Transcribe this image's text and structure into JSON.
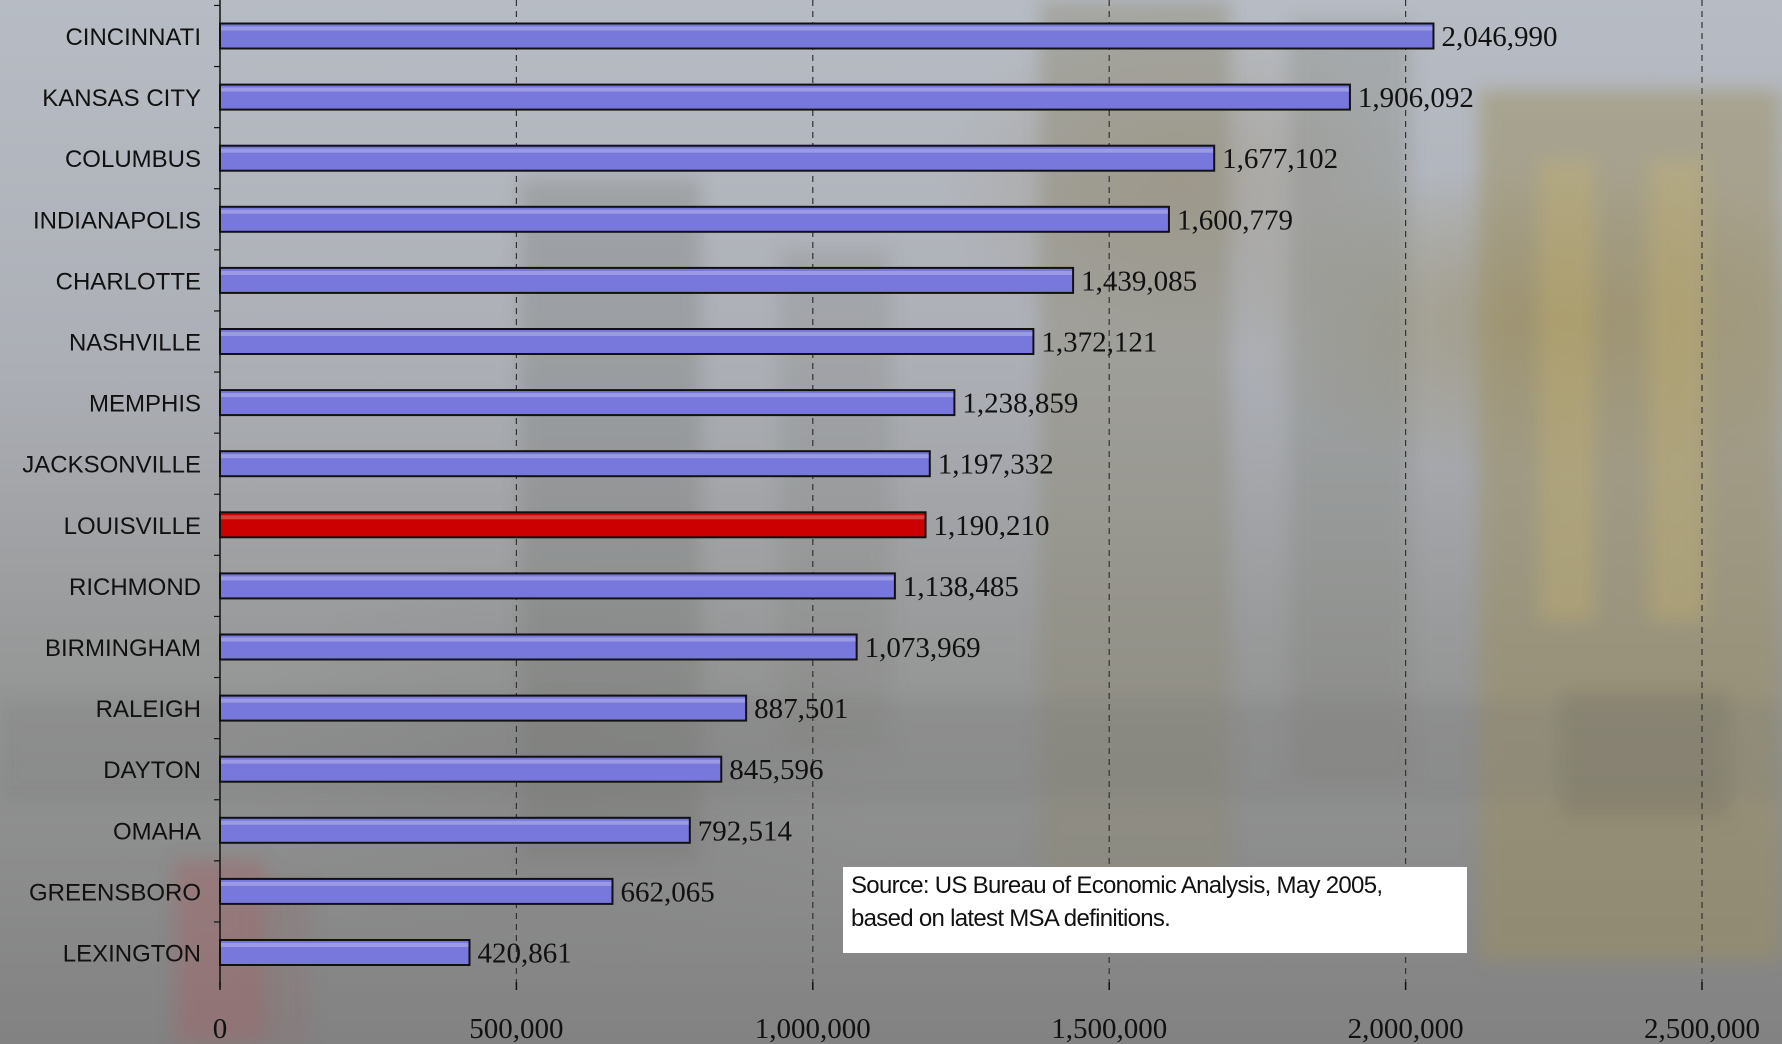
{
  "chart_data": {
    "type": "bar",
    "orientation": "horizontal",
    "categories": [
      "CINCINNATI",
      "KANSAS CITY",
      "COLUMBUS",
      "INDIANAPOLIS",
      "CHARLOTTE",
      "NASHVILLE",
      "MEMPHIS",
      "JACKSONVILLE",
      "LOUISVILLE",
      "RICHMOND",
      "BIRMINGHAM",
      "RALEIGH",
      "DAYTON",
      "OMAHA",
      "GREENSBORO",
      "LEXINGTON"
    ],
    "values": [
      2046990,
      1906092,
      1677102,
      1600779,
      1439085,
      1372121,
      1238859,
      1197332,
      1190210,
      1138485,
      1073969,
      887501,
      845596,
      792514,
      662065,
      420861
    ],
    "value_labels": [
      "2,046,990",
      "1,906,092",
      "1,677,102",
      "1,600,779",
      "1,439,085",
      "1,372,121",
      "1,238,859",
      "1,197,332",
      "1,190,210",
      "1,138,485",
      "1,073,969",
      "887,501",
      "845,596",
      "792,514",
      "662,065",
      "420,861"
    ],
    "highlight_category": "LOUISVILLE",
    "xlim": [
      0,
      2500000
    ],
    "x_ticks": [
      0,
      500000,
      1000000,
      1500000,
      2000000,
      2500000
    ],
    "x_tick_labels": [
      "0",
      "500,000",
      "1,000,000",
      "1,500,000",
      "2,000,000",
      "2,500,000"
    ],
    "grid": "vertical dashed",
    "title": "",
    "xlabel": "",
    "ylabel": "",
    "colors": {
      "bar": "#7878dc",
      "bar_highlight": "#cc0000",
      "bar_outline": "#111111",
      "gridline": "#333333"
    }
  },
  "annotation": {
    "source_line_1": "Source: US Bureau of Economic Analysis, May 2005,",
    "source_line_2": "based on latest MSA definitions."
  }
}
